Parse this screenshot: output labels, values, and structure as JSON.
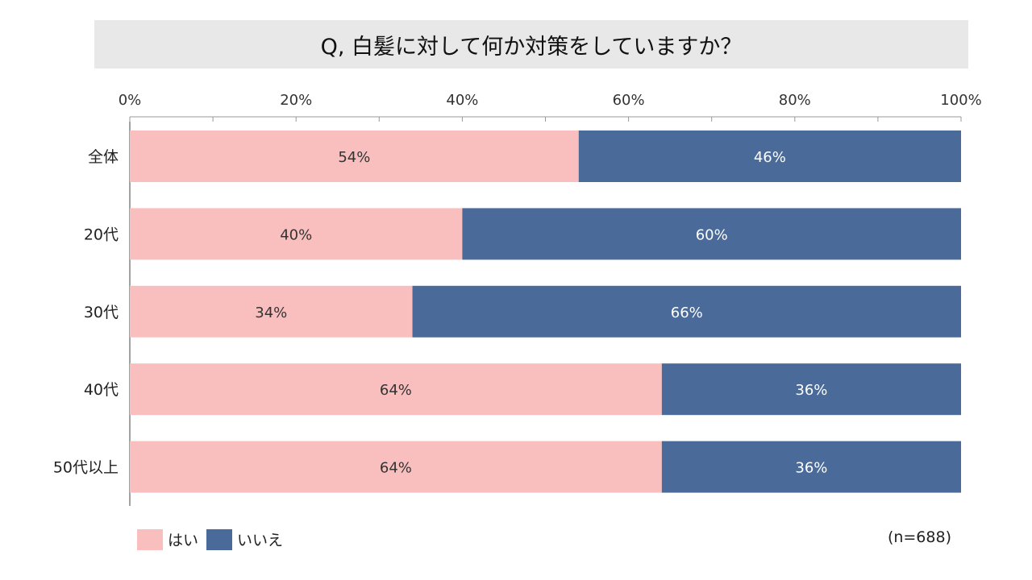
{
  "chart_data": {
    "type": "bar",
    "orientation": "horizontal",
    "stacked": true,
    "title": "Q, 白髪に対して何か対策をしていますか？",
    "categories": [
      "全体",
      "20代",
      "30代",
      "40代",
      "50代以上"
    ],
    "series": [
      {
        "name": "はい",
        "values": [
          54,
          40,
          34,
          64,
          64
        ],
        "color": "#f9bfbf",
        "label_color": "#333333"
      },
      {
        "name": "いいえ",
        "values": [
          46,
          60,
          66,
          36,
          36
        ],
        "color": "#4a6a9a",
        "label_color": "#ffffff"
      }
    ],
    "xlim": [
      0,
      100
    ],
    "xticks": [
      0,
      20,
      40,
      60,
      80,
      100
    ],
    "xtick_labels": [
      "0%",
      "20%",
      "40%",
      "60%",
      "80%",
      "100%"
    ],
    "value_suffix": "%",
    "legend_position": "bottom-left",
    "note": "(n=688)"
  }
}
